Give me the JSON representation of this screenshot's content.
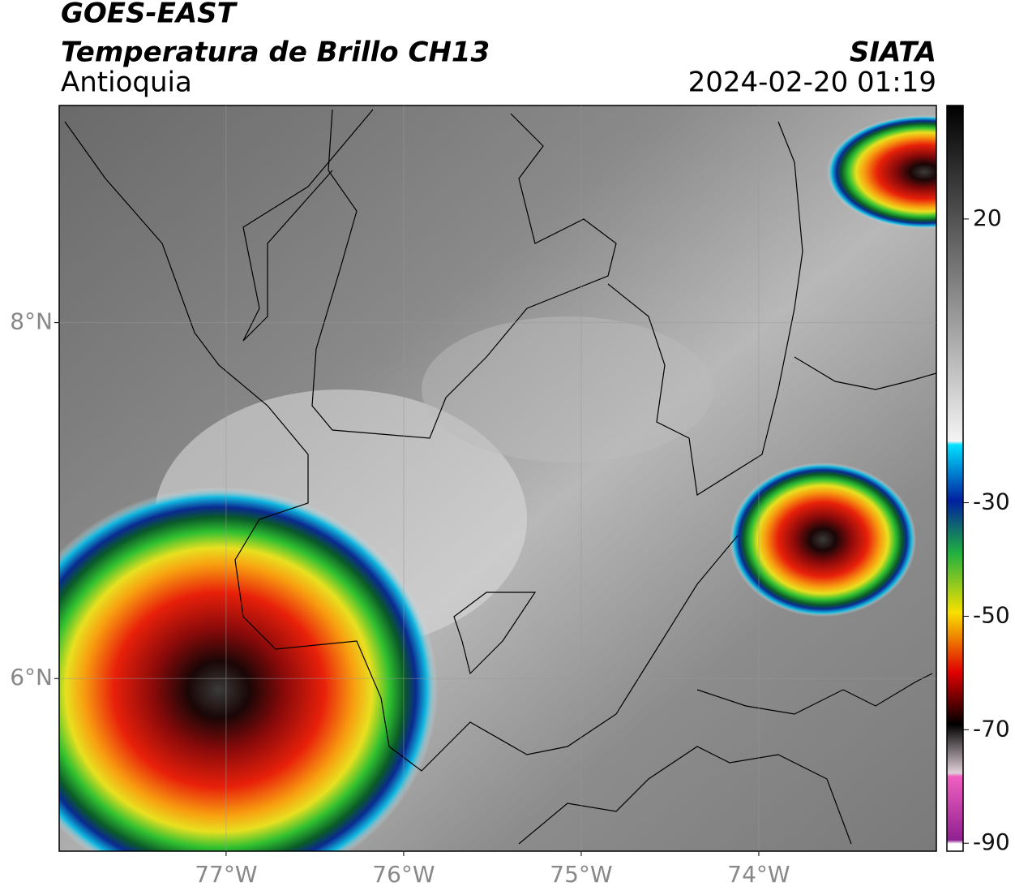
{
  "header": {
    "title": "GOES-EAST",
    "subtitle": "Temperatura de Brillo CH13",
    "region": "Antioquia",
    "source": "SIATA",
    "datetime": "2024-02-20 01:19"
  },
  "map": {
    "lon_range": [
      -77.94,
      -73.0
    ],
    "lat_range": [
      5.03,
      9.22
    ],
    "lat_ticks": [
      {
        "value": 8,
        "label": "8°N"
      },
      {
        "value": 6,
        "label": "6°N"
      }
    ],
    "lon_ticks": [
      {
        "value": -77,
        "label": "77°W"
      },
      {
        "value": -76,
        "label": "76°W"
      },
      {
        "value": -75,
        "label": "75°W"
      },
      {
        "value": -74,
        "label": "74°W"
      }
    ]
  },
  "colorbar": {
    "range": [
      -91.4,
      40
    ],
    "ticks": [
      20,
      -30,
      -50,
      -70,
      -90
    ]
  }
}
